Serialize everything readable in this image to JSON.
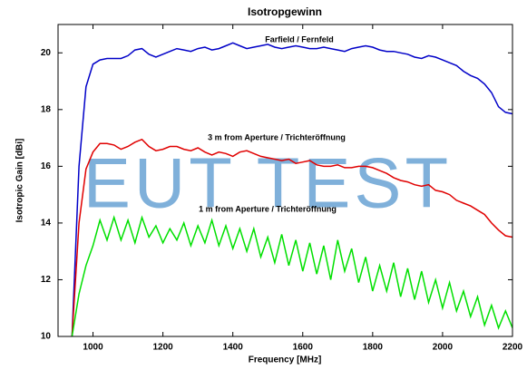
{
  "chart_data": {
    "type": "line",
    "title": "Isotropgewinn",
    "xlabel": "Frequency [MHz]",
    "ylabel": "Isotropic Gain [dBi]",
    "watermark": "EUT TEST",
    "x": [
      940,
      960,
      980,
      1000,
      1020,
      1040,
      1060,
      1080,
      1100,
      1120,
      1140,
      1160,
      1180,
      1200,
      1220,
      1240,
      1260,
      1280,
      1300,
      1320,
      1340,
      1360,
      1380,
      1400,
      1420,
      1440,
      1460,
      1480,
      1500,
      1520,
      1540,
      1560,
      1580,
      1600,
      1620,
      1640,
      1660,
      1680,
      1700,
      1720,
      1740,
      1760,
      1780,
      1800,
      1820,
      1840,
      1860,
      1880,
      1900,
      1920,
      1940,
      1960,
      1980,
      2000,
      2020,
      2040,
      2060,
      2080,
      2100,
      2120,
      2140,
      2160,
      2180,
      2200
    ],
    "series": [
      {
        "name": "Farfield / Fernfeld",
        "color": "#0000c8",
        "values": [
          10,
          16,
          18.8,
          19.6,
          19.75,
          19.8,
          19.8,
          19.8,
          19.9,
          20.1,
          20.15,
          19.95,
          19.85,
          19.95,
          20.05,
          20.15,
          20.1,
          20.05,
          20.15,
          20.2,
          20.1,
          20.15,
          20.25,
          20.35,
          20.25,
          20.15,
          20.2,
          20.25,
          20.3,
          20.2,
          20.15,
          20.2,
          20.25,
          20.2,
          20.15,
          20.15,
          20.2,
          20.15,
          20.1,
          20.05,
          20.15,
          20.2,
          20.25,
          20.2,
          20.1,
          20.05,
          20.05,
          20.0,
          19.95,
          19.85,
          19.8,
          19.9,
          19.85,
          19.75,
          19.65,
          19.55,
          19.35,
          19.2,
          19.1,
          18.9,
          18.6,
          18.1,
          17.9,
          17.85
        ]
      },
      {
        "name": "3 m from Aperture / Trichteröffnung",
        "color": "#e00000",
        "values": [
          10,
          14,
          15.9,
          16.5,
          16.8,
          16.8,
          16.75,
          16.6,
          16.7,
          16.85,
          16.95,
          16.7,
          16.55,
          16.6,
          16.7,
          16.7,
          16.6,
          16.55,
          16.65,
          16.5,
          16.4,
          16.5,
          16.45,
          16.35,
          16.5,
          16.55,
          16.45,
          16.35,
          16.3,
          16.25,
          16.2,
          16.25,
          16.1,
          16.15,
          16.2,
          16.05,
          16.0,
          16.0,
          16.05,
          15.95,
          15.95,
          16.0,
          16.0,
          15.95,
          15.85,
          15.75,
          15.6,
          15.5,
          15.45,
          15.35,
          15.3,
          15.35,
          15.15,
          15.1,
          15.0,
          14.8,
          14.7,
          14.6,
          14.45,
          14.3,
          14.0,
          13.75,
          13.55,
          13.5
        ]
      },
      {
        "name": "1 m from Aperture / Trichteröffnung",
        "color": "#00e000",
        "values": [
          10,
          11.5,
          12.5,
          13.2,
          14.1,
          13.4,
          14.2,
          13.4,
          14.1,
          13.3,
          14.2,
          13.5,
          13.9,
          13.3,
          13.8,
          13.4,
          14.0,
          13.2,
          13.9,
          13.3,
          14.1,
          13.2,
          13.9,
          13.1,
          13.8,
          13.0,
          13.8,
          12.8,
          13.5,
          12.6,
          13.6,
          12.5,
          13.4,
          12.3,
          13.3,
          12.2,
          13.2,
          12.0,
          13.4,
          12.3,
          13.1,
          11.9,
          12.8,
          11.6,
          12.5,
          11.6,
          12.6,
          11.4,
          12.4,
          11.3,
          12.3,
          11.2,
          12.0,
          11.0,
          11.9,
          10.9,
          11.6,
          10.7,
          11.4,
          10.4,
          11.1,
          10.3,
          10.9,
          10.3
        ]
      }
    ],
    "xlim": [
      900,
      2200
    ],
    "ylim": [
      10,
      21
    ],
    "xticks": [
      1000,
      1200,
      1400,
      1600,
      1800,
      2000,
      2200
    ],
    "yticks": [
      10,
      12,
      14,
      16,
      18,
      20
    ],
    "grid": false
  }
}
